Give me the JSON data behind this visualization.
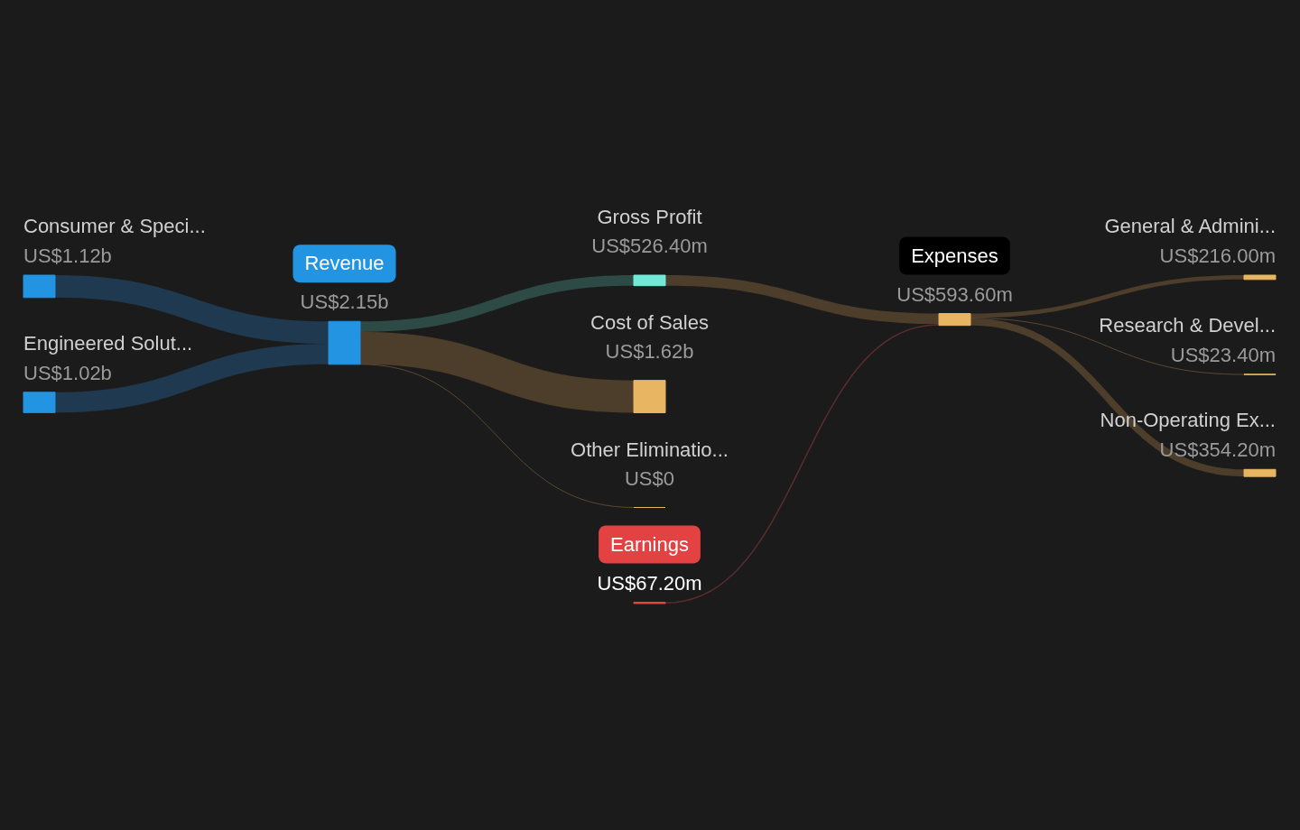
{
  "chart_data": {
    "type": "other",
    "categories": [
      "Consumer & Speci...",
      "Engineered Solut...",
      "Revenue",
      "Gross Profit",
      "Cost of Sales",
      "Other Eliminatio...",
      "Earnings",
      "Expenses",
      "General & Admini...",
      "Research & Devel...",
      "Non-Operating Ex..."
    ],
    "values": [
      1120000000,
      1020000000,
      2150000000,
      526400000,
      1620000000,
      0,
      67200000,
      593600000,
      216000000,
      23400000,
      354200000
    ],
    "value_labels": [
      "US$1.12b",
      "US$1.02b",
      "US$2.15b",
      "US$526.40m",
      "US$1.62b",
      "US$0",
      "US$67.20m",
      "US$593.60m",
      "US$216.00m",
      "US$23.40m",
      "US$354.20m"
    ],
    "colors": [
      "#2394e1",
      "#2394e1",
      "#2394e1",
      "#72e8d6",
      "#e8b563",
      "#e8b563",
      "#e34242",
      "#e8b563",
      "#e8b563",
      "#e8b563",
      "#e8b563"
    ],
    "series": [
      {
        "type": "line",
        "x": [
          "Consumer & Speci...",
          "Revenue"
        ],
        "values": [
          null,
          null
        ],
        "color": "#1f3a50"
      },
      {
        "type": "line",
        "x": [
          "Engineered Solut...",
          "Revenue"
        ],
        "values": [
          null,
          null
        ],
        "color": "#1f3a50"
      },
      {
        "type": "line",
        "x": [
          "Revenue",
          "Gross Profit"
        ],
        "values": [
          null,
          null
        ],
        "color": "#2d4a45"
      },
      {
        "type": "line",
        "x": [
          "Revenue",
          "Cost of Sales"
        ],
        "values": [
          null,
          null
        ],
        "color": "#4d3d2b"
      },
      {
        "type": "line",
        "x": [
          "Revenue",
          "Other Eliminatio..."
        ],
        "values": [
          null,
          null
        ],
        "color": "#5a4832"
      },
      {
        "type": "line",
        "x": [
          "Gross Profit",
          "Expenses"
        ],
        "values": [
          null,
          null
        ],
        "color": "#4d3d2b"
      },
      {
        "type": "line",
        "x": [
          "Earnings",
          "Expenses"
        ],
        "values": [
          null,
          null
        ],
        "color": "#5c2c2e"
      },
      {
        "type": "line",
        "x": [
          "Expenses",
          "General & Admini..."
        ],
        "values": [
          null,
          null
        ],
        "color": "#4d3d2b"
      },
      {
        "type": "line",
        "x": [
          "Expenses",
          "Research & Devel..."
        ],
        "values": [
          null,
          null
        ],
        "color": "#5a4832"
      },
      {
        "type": "line",
        "x": [
          "Expenses",
          "Non-Operating Ex..."
        ],
        "values": [
          null,
          null
        ],
        "color": "#4d3d2b"
      }
    ]
  }
}
